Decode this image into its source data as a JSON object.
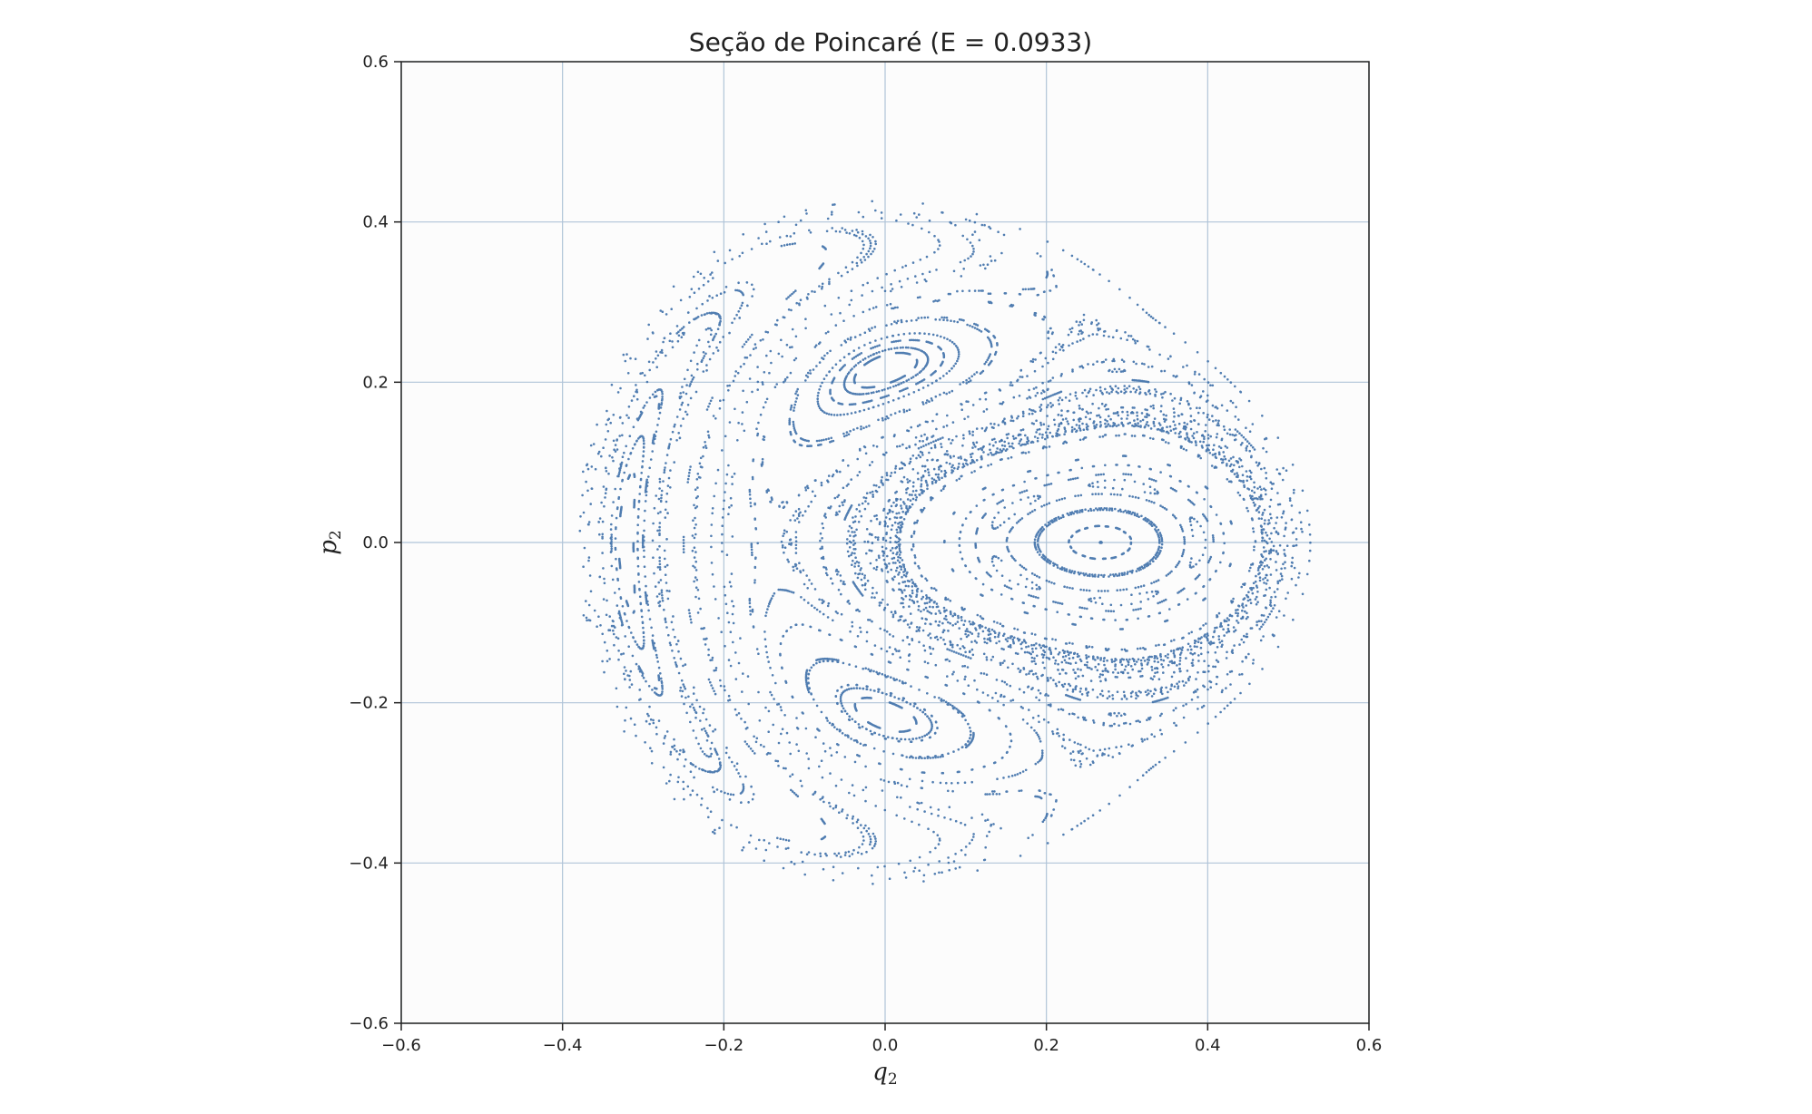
{
  "chart_data": {
    "type": "scatter",
    "title": "Seção de Poincaré (E = 0.0933)",
    "xlabel": "q",
    "xlabel_sub": "2",
    "ylabel": "p",
    "ylabel_sub": "2",
    "xlim": [
      -0.6,
      0.6
    ],
    "ylim": [
      -0.6,
      0.6
    ],
    "xticks": [
      -0.6,
      -0.4,
      -0.2,
      0.0,
      0.2,
      0.4,
      0.6
    ],
    "yticks": [
      -0.6,
      -0.4,
      -0.2,
      0.0,
      0.2,
      0.4,
      0.6
    ],
    "xtick_labels": [
      "−0.6",
      "−0.4",
      "−0.2",
      "0.0",
      "0.2",
      "0.4",
      "0.6"
    ],
    "ytick_labels": [
      "−0.6",
      "−0.4",
      "−0.2",
      "0.0",
      "0.2",
      "0.4",
      "0.6"
    ],
    "grid": true,
    "point_color": "#3d6fa8",
    "grid_color": "#b0c4d8",
    "energy": 0.0933,
    "islands": [
      {
        "name": "right-island",
        "center": [
          0.268,
          0.0
        ],
        "rx": 0.115,
        "ry": 0.05
      },
      {
        "name": "upper-island",
        "center": [
          0.0,
          0.215
        ],
        "rx": 0.12,
        "ry": 0.075
      },
      {
        "name": "lower-island",
        "center": [
          -0.005,
          -0.215
        ],
        "rx": 0.12,
        "ry": 0.075
      },
      {
        "name": "left-island",
        "center": [
          -0.32,
          0.0
        ],
        "rx": 0.025,
        "ry": 0.13
      }
    ]
  }
}
